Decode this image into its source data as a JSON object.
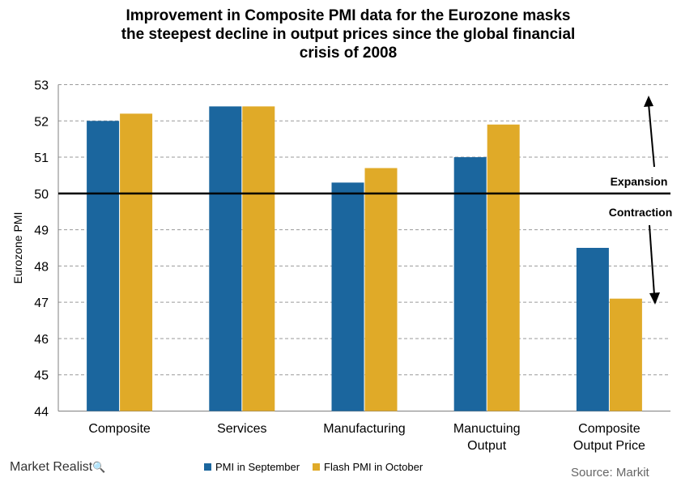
{
  "title": "Improvement in Composite  PMI data for the Eurozone masks\nthe steepest decline in output prices since the global financial\ncrisis of 2008",
  "brand": "Market Realist",
  "source": "Source: Markit",
  "chart_data": {
    "type": "bar",
    "title": "Improvement in Composite  PMI data for the Eurozone masks the steepest decline in output prices since the global financial crisis of 2008",
    "ylabel": "Eurozone PMI",
    "xlabel": "",
    "ylim": [
      44,
      53
    ],
    "yticks": [
      44,
      45,
      46,
      47,
      48,
      49,
      50,
      51,
      52,
      53
    ],
    "categories": [
      "Composite",
      "Services",
      "Manufacturing",
      "Manuctuing\nOutput",
      "Composite\nOutput Price"
    ],
    "series": [
      {
        "name": "PMI in September",
        "color": "#1b669e",
        "values": [
          52.0,
          52.4,
          50.3,
          51.0,
          48.5
        ]
      },
      {
        "name": "Flash PMI in October",
        "color": "#e0aa28",
        "values": [
          52.2,
          52.4,
          50.7,
          51.9,
          47.1
        ]
      }
    ],
    "reference_line": {
      "value": 50
    },
    "annotations": [
      "Expansion",
      "Contraction"
    ],
    "grid": true,
    "legend_position": "bottom"
  }
}
